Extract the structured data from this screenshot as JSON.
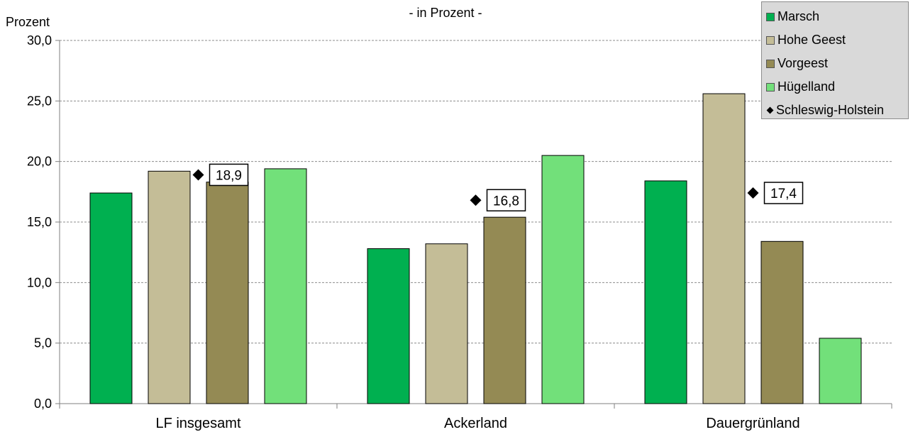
{
  "chart_data": {
    "type": "bar",
    "title": "- in Prozent -",
    "ylabel": "Prozent",
    "xlabel": "",
    "ylim": [
      0,
      30
    ],
    "yticks": [
      "0,0",
      "5,0",
      "10,0",
      "15,0",
      "20,0",
      "25,0",
      "30,0"
    ],
    "grid": true,
    "legend_position": "top-right",
    "categories": [
      "LF insgesamt",
      "Ackerland",
      "Dauergrünland"
    ],
    "series": [
      {
        "name": "Marsch",
        "color": "#00b050",
        "values": [
          17.4,
          12.8,
          18.4
        ]
      },
      {
        "name": "Hohe Geest",
        "color": "#c4bd97",
        "values": [
          19.2,
          13.2,
          25.6
        ]
      },
      {
        "name": "Vorgeest",
        "color": "#948a54",
        "values": [
          18.3,
          15.4,
          13.4
        ]
      },
      {
        "name": "Hügelland",
        "color": "#72e07a",
        "values": [
          19.4,
          20.5,
          5.4
        ]
      }
    ],
    "markers": {
      "name": "Schleswig-Holstein",
      "marker": "diamond",
      "values": [
        18.9,
        16.8,
        17.4
      ],
      "labels": [
        "18,9",
        "16,8",
        "17,4"
      ]
    }
  }
}
